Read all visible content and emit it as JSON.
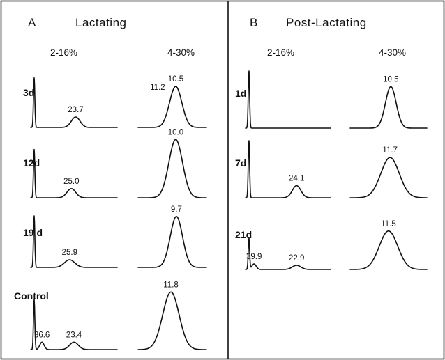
{
  "chart_data": {
    "type": "line",
    "panels": [
      {
        "letter": "A",
        "title": "Lactating",
        "columns": [
          "2-16%",
          "4-30%"
        ],
        "rows": [
          {
            "label": "3d",
            "traces": [
              {
                "column": "2-16%",
                "peaks": [
                  {
                    "position": 0.04,
                    "height": 0.95,
                    "width": 0.008,
                    "label": ""
                  },
                  {
                    "position": 0.52,
                    "height": 0.2,
                    "width": 0.05,
                    "label": "23.7"
                  }
                ]
              },
              {
                "column": "4-30%",
                "peaks": [
                  {
                    "position": 0.55,
                    "height": 0.95,
                    "width": 0.09,
                    "label": "10.5"
                  }
                ],
                "extra_labels": [
                  "11.2"
                ]
              }
            ]
          },
          {
            "label": "12d",
            "traces": [
              {
                "column": "2-16%",
                "peaks": [
                  {
                    "position": 0.04,
                    "height": 0.95,
                    "width": 0.008,
                    "label": ""
                  },
                  {
                    "position": 0.47,
                    "height": 0.18,
                    "width": 0.05,
                    "label": "25.0"
                  }
                ]
              },
              {
                "column": "4-30%",
                "peaks": [
                  {
                    "position": 0.55,
                    "height": 0.95,
                    "width": 0.1,
                    "label": "10.0"
                  }
                ]
              }
            ]
          },
          {
            "label": "19 d",
            "traces": [
              {
                "column": "2-16%",
                "peaks": [
                  {
                    "position": 0.04,
                    "height": 0.95,
                    "width": 0.008,
                    "label": ""
                  },
                  {
                    "position": 0.45,
                    "height": 0.14,
                    "width": 0.06,
                    "label": "25.9"
                  }
                ]
              },
              {
                "column": "4-30%",
                "peaks": [
                  {
                    "position": 0.56,
                    "height": 0.95,
                    "width": 0.09,
                    "label": "9.7"
                  }
                ]
              }
            ]
          },
          {
            "label": "Control",
            "traces": [
              {
                "column": "2-16%",
                "peaks": [
                  {
                    "position": 0.04,
                    "height": 0.95,
                    "width": 0.008,
                    "label": ""
                  },
                  {
                    "position": 0.13,
                    "height": 0.14,
                    "width": 0.025,
                    "label": "36.6"
                  },
                  {
                    "position": 0.5,
                    "height": 0.14,
                    "width": 0.05,
                    "label": "23.4"
                  }
                ]
              },
              {
                "column": "4-30%",
                "peaks": [
                  {
                    "position": 0.48,
                    "height": 0.95,
                    "width": 0.12,
                    "label": "11.8"
                  }
                ]
              }
            ]
          }
        ]
      },
      {
        "letter": "B",
        "title": "Post-Lactating",
        "columns": [
          "2-16%",
          "4-30%"
        ],
        "rows": [
          {
            "label": "1d",
            "traces": [
              {
                "column": "2-16%",
                "peaks": [
                  {
                    "position": 0.04,
                    "height": 0.95,
                    "width": 0.008,
                    "label": ""
                  }
                ]
              },
              {
                "column": "4-30%",
                "peaks": [
                  {
                    "position": 0.53,
                    "height": 0.85,
                    "width": 0.07,
                    "label": "10.5"
                  }
                ]
              }
            ]
          },
          {
            "label": "7d",
            "traces": [
              {
                "column": "2-16%",
                "peaks": [
                  {
                    "position": 0.04,
                    "height": 0.95,
                    "width": 0.008,
                    "label": ""
                  },
                  {
                    "position": 0.6,
                    "height": 0.2,
                    "width": 0.05,
                    "label": "24.1"
                  }
                ]
              },
              {
                "column": "4-30%",
                "peaks": [
                  {
                    "position": 0.52,
                    "height": 0.85,
                    "width": 0.12,
                    "label": "11.7"
                  }
                ]
              }
            ]
          },
          {
            "label": "21d",
            "traces": [
              {
                "column": "2-16%",
                "peaks": [
                  {
                    "position": 0.04,
                    "height": 0.9,
                    "width": 0.008,
                    "label": ""
                  },
                  {
                    "position": 0.1,
                    "height": 0.16,
                    "width": 0.025,
                    "label": "39.9"
                  },
                  {
                    "position": 0.6,
                    "height": 0.12,
                    "width": 0.05,
                    "label": "22.9"
                  }
                ]
              },
              {
                "column": "4-30%",
                "peaks": [
                  {
                    "position": 0.5,
                    "height": 0.85,
                    "width": 0.12,
                    "label": "11.5"
                  }
                ]
              }
            ]
          }
        ]
      }
    ]
  }
}
